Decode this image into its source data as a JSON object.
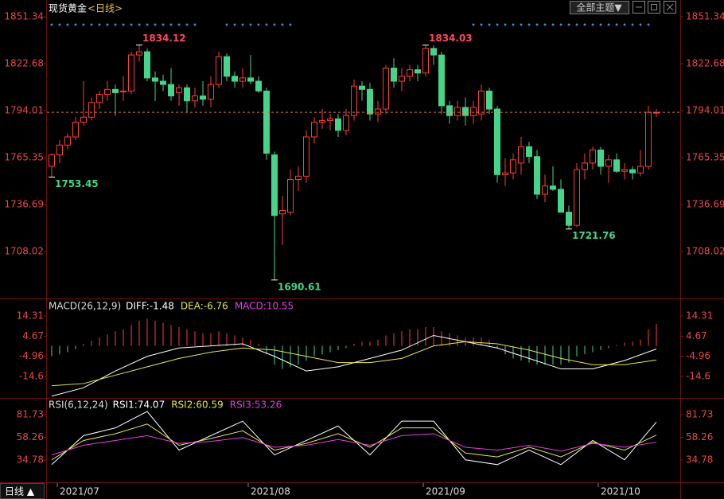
{
  "toolbar": {
    "theme_button": "全部主题▼"
  },
  "footer": {
    "period": "日线 ▲"
  },
  "chart_data": [
    {
      "type": "candlestick",
      "title": "现货黄金",
      "subtitle": "<日线>",
      "up_color": "#ff3a3a",
      "down_color": "#45d48a",
      "open": [
        1760,
        1767,
        1773,
        1778,
        1787,
        1790,
        1799,
        1804,
        1807,
        1806,
        1806,
        1828,
        1830,
        1814,
        1812,
        1810,
        1805,
        1808,
        1800,
        1803,
        1801,
        1810,
        1827,
        1815,
        1812,
        1814,
        1812,
        1806,
        1767,
        1731,
        1732,
        1752,
        1754,
        1778,
        1787,
        1788,
        1789,
        1782,
        1791,
        1809,
        1807,
        1792,
        1795,
        1820,
        1812,
        1815,
        1819,
        1817,
        1832,
        1828,
        1797,
        1791,
        1796,
        1791,
        1792,
        1806,
        1795,
        1755,
        1756,
        1762,
        1772,
        1766,
        1743,
        1748,
        1746,
        1732,
        1724,
        1758,
        1762,
        1770,
        1760,
        1764,
        1757,
        1758,
        1756,
        1760,
        1793
      ],
      "high": [
        1768,
        1776,
        1780,
        1790,
        1812,
        1802,
        1806,
        1812,
        1810,
        1815,
        1830,
        1834.12,
        1832,
        1818,
        1816,
        1820,
        1810,
        1810,
        1808,
        1812,
        1815,
        1830,
        1829,
        1818,
        1820,
        1828,
        1815,
        1808,
        1769,
        1742,
        1758,
        1760,
        1782,
        1790,
        1795,
        1792,
        1792,
        1795,
        1813,
        1812,
        1811,
        1800,
        1822,
        1826,
        1820,
        1822,
        1822,
        1834.03,
        1834,
        1830,
        1800,
        1800,
        1802,
        1800,
        1810,
        1808,
        1797,
        1765,
        1768,
        1778,
        1775,
        1770,
        1755,
        1760,
        1752,
        1736,
        1762,
        1768,
        1772,
        1772,
        1767,
        1768,
        1762,
        1760,
        1770,
        1797,
        1795
      ],
      "low": [
        1753.45,
        1762,
        1770,
        1776,
        1785,
        1788,
        1795,
        1800,
        1791,
        1800,
        1804,
        1824,
        1812,
        1800,
        1806,
        1800,
        1797,
        1793,
        1796,
        1797,
        1796,
        1808,
        1812,
        1808,
        1808,
        1810,
        1805,
        1764,
        1690.61,
        1712,
        1730,
        1745,
        1750,
        1774,
        1783,
        1782,
        1778,
        1779,
        1788,
        1800,
        1788,
        1787,
        1792,
        1808,
        1806,
        1812,
        1812,
        1815,
        1822,
        1792,
        1786,
        1788,
        1785,
        1786,
        1788,
        1792,
        1750,
        1748,
        1752,
        1755,
        1762,
        1740,
        1738,
        1745,
        1732,
        1721.76,
        1723,
        1752,
        1758,
        1755,
        1750,
        1756,
        1752,
        1752,
        1754,
        1758,
        1790
      ],
      "close": [
        1767,
        1773,
        1778,
        1787,
        1790,
        1799,
        1804,
        1807,
        1805,
        1806,
        1828,
        1830,
        1814,
        1812,
        1810,
        1803,
        1808,
        1800,
        1803,
        1801,
        1810,
        1827,
        1815,
        1812,
        1814,
        1812,
        1806,
        1768,
        1730,
        1733,
        1752,
        1754,
        1778,
        1787,
        1788,
        1789,
        1782,
        1791,
        1809,
        1807,
        1792,
        1795,
        1820,
        1812,
        1815,
        1819,
        1817,
        1832,
        1828,
        1797,
        1791,
        1796,
        1791,
        1796,
        1806,
        1795,
        1755,
        1756,
        1764,
        1772,
        1766,
        1743,
        1748,
        1746,
        1732,
        1724,
        1758,
        1762,
        1770,
        1760,
        1764,
        1757,
        1758,
        1756,
        1760,
        1793,
        1793
      ],
      "annotations": [
        {
          "label": "1753.45",
          "index": 0,
          "price": 1753.45,
          "side": "low"
        },
        {
          "label": "1834.12",
          "index": 11,
          "price": 1834.12,
          "side": "high"
        },
        {
          "label": "1690.61",
          "index": 28,
          "price": 1690.61,
          "side": "low"
        },
        {
          "label": "1834.03",
          "index": 47,
          "price": 1834.03,
          "side": "high"
        },
        {
          "label": "1721.76",
          "index": 65,
          "price": 1721.76,
          "side": "low"
        }
      ],
      "x_labels": [
        {
          "index": 1,
          "label": "2021/07"
        },
        {
          "index": 25,
          "label": "2021/08"
        },
        {
          "index": 47,
          "label": "2021/09"
        },
        {
          "index": 69,
          "label": "2021/10"
        }
      ],
      "ylim": [
        1680.8,
        1857.7
      ],
      "yticks": [
        1851.34,
        1822.68,
        1794.01,
        1765.35,
        1736.69,
        1708.02
      ]
    },
    {
      "type": "macd",
      "title": "MACD(26,12,9)",
      "x": [
        0,
        4,
        8,
        12,
        16,
        20,
        24,
        28,
        32,
        36,
        40,
        44,
        48,
        52,
        56,
        60,
        64,
        68,
        72,
        76
      ],
      "series": [
        {
          "name": "DIFF:-1.48",
          "color": "#ffffff",
          "values": [
            -24,
            -20,
            -12,
            -5,
            -1,
            0,
            1,
            -5,
            -12,
            -10,
            -6,
            -2,
            5,
            2,
            -1,
            -6,
            -11,
            -11,
            -7,
            -1.48
          ]
        },
        {
          "name": "DEA:-6.76",
          "color": "#e6e64c",
          "values": [
            -19,
            -18,
            -14,
            -10,
            -6,
            -3,
            -1,
            -2,
            -5,
            -8,
            -8,
            -6,
            0,
            2,
            1,
            -2,
            -6,
            -9,
            -9,
            -6.76
          ]
        }
      ],
      "histogram": {
        "name": "MACD:10.55",
        "color": "#e040e0",
        "up_color": "#ff3a3a",
        "down_color": "#45d48a",
        "values": [
          -5,
          -4,
          -3,
          -1.5,
          1,
          2.5,
          4,
          5.5,
          7,
          8,
          10,
          12,
          13,
          12,
          11,
          10,
          9,
          8,
          7,
          6,
          6,
          7,
          6,
          5,
          4,
          3,
          1,
          -4,
          -9,
          -11,
          -10,
          -9,
          -7,
          -5,
          -4,
          -3,
          -2,
          -1,
          1,
          2,
          2,
          3,
          5,
          6,
          7,
          8,
          8,
          9,
          9,
          7,
          6,
          5,
          4,
          4,
          4,
          3,
          -1,
          -4,
          -6,
          -7,
          -8,
          -9,
          -9,
          -9,
          -9,
          -8,
          -5,
          -4,
          -3,
          -2,
          -1,
          0.5,
          1.5,
          2,
          3,
          8,
          10.55
        ]
      },
      "ylim": [
        -24.11,
        21.54
      ],
      "yticks": [
        14.31,
        4.67,
        -4.96,
        -14.6
      ]
    },
    {
      "type": "rsi",
      "title": "RSI(6,12,24)",
      "x": [
        0,
        4,
        8,
        12,
        16,
        20,
        24,
        28,
        32,
        36,
        40,
        44,
        48,
        52,
        56,
        60,
        64,
        68,
        72,
        76
      ],
      "series": [
        {
          "name": "RSI1:74.07",
          "color": "#ffffff",
          "values": [
            30,
            60,
            68,
            85,
            45,
            60,
            75,
            40,
            55,
            70,
            40,
            75,
            75,
            35,
            30,
            45,
            30,
            55,
            35,
            74.07
          ]
        },
        {
          "name": "RSI2:60.59",
          "color": "#e6e64c",
          "values": [
            35,
            55,
            62,
            72,
            50,
            57,
            65,
            45,
            52,
            62,
            48,
            68,
            68,
            42,
            38,
            48,
            38,
            53,
            45,
            60.59
          ]
        },
        {
          "name": "RSI3:53.26",
          "color": "#e040e0",
          "values": [
            40,
            50,
            55,
            60,
            52,
            54,
            58,
            48,
            50,
            56,
            50,
            60,
            62,
            48,
            45,
            50,
            44,
            52,
            48,
            53.26
          ]
        }
      ],
      "ylim": [
        14.19,
        96.56
      ],
      "yticks": [
        81.73,
        58.26,
        34.78
      ]
    }
  ]
}
